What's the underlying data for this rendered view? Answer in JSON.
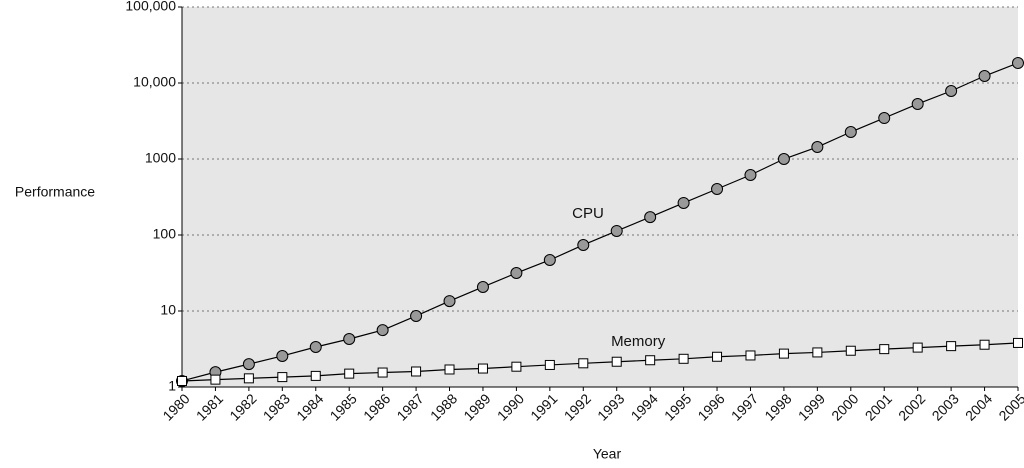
{
  "chart_data": {
    "type": "line",
    "x_label": "Year",
    "y_label": "Performance",
    "x": [
      1980,
      1981,
      1982,
      1983,
      1984,
      1985,
      1986,
      1987,
      1988,
      1989,
      1990,
      1991,
      1992,
      1993,
      1994,
      1995,
      1996,
      1997,
      1998,
      1999,
      2000,
      2001,
      2002,
      2003,
      2004,
      2005
    ],
    "series": [
      {
        "name": "CPU",
        "color": "#999999",
        "marker": "circle",
        "values": [
          1.2,
          1.57,
          2.0,
          2.56,
          3.36,
          4.28,
          5.6,
          8.6,
          13.5,
          20.7,
          31.6,
          46.9,
          73.9,
          113,
          172,
          264,
          403,
          616,
          1000,
          1438,
          2265,
          3460,
          5296,
          7848,
          12360,
          18330
        ]
      },
      {
        "name": "Memory",
        "color": "#ffffff",
        "marker": "square",
        "values": [
          1.2,
          1.25,
          1.3,
          1.35,
          1.4,
          1.5,
          1.55,
          1.6,
          1.7,
          1.75,
          1.85,
          1.95,
          2.05,
          2.15,
          2.25,
          2.35,
          2.5,
          2.6,
          2.75,
          2.85,
          3.0,
          3.15,
          3.3,
          3.45,
          3.6,
          3.8
        ]
      }
    ],
    "xlim": [
      1980,
      2005
    ],
    "xticks": [
      1980,
      1981,
      1982,
      1983,
      1984,
      1985,
      1986,
      1987,
      1988,
      1989,
      1990,
      1991,
      1992,
      1993,
      1994,
      1995,
      1996,
      1997,
      1998,
      1999,
      2000,
      2001,
      2002,
      2003,
      2004,
      2005
    ],
    "ylim": [
      1,
      100000
    ],
    "y_scale": "log",
    "yticks": [
      1,
      10,
      100,
      1000,
      {
        "value": 10000,
        "label": "10,000"
      },
      {
        "value": 100000,
        "label": "100,000"
      }
    ],
    "grid": true
  }
}
